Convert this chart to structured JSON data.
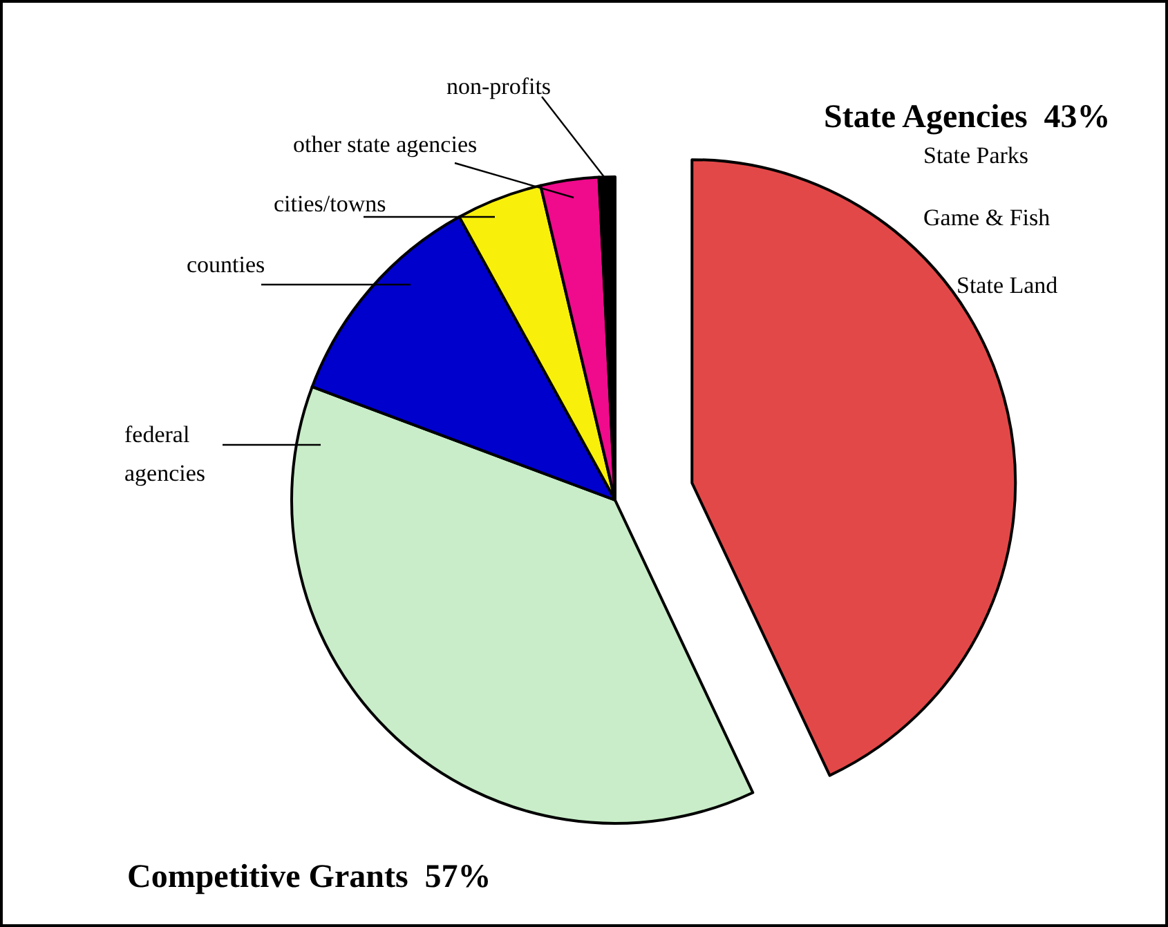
{
  "chart_data": {
    "type": "pie",
    "categories": [
      null,
      "federal agencies",
      "counties",
      "cities/towns",
      "other state agencies",
      "non-profits"
    ],
    "values": [
      43,
      37.7,
      11.3,
      4.3,
      2.9,
      0.8
    ],
    "colors": [
      "#e34848",
      "#c8edc8",
      "#0000cc",
      "#f8f00a",
      "#f00a8c",
      "#000000"
    ],
    "annotations": [
      "State Agencies  43%",
      "State Parks",
      "Game & Fish",
      "State Land",
      "Competitive Grants  57%"
    ]
  }
}
